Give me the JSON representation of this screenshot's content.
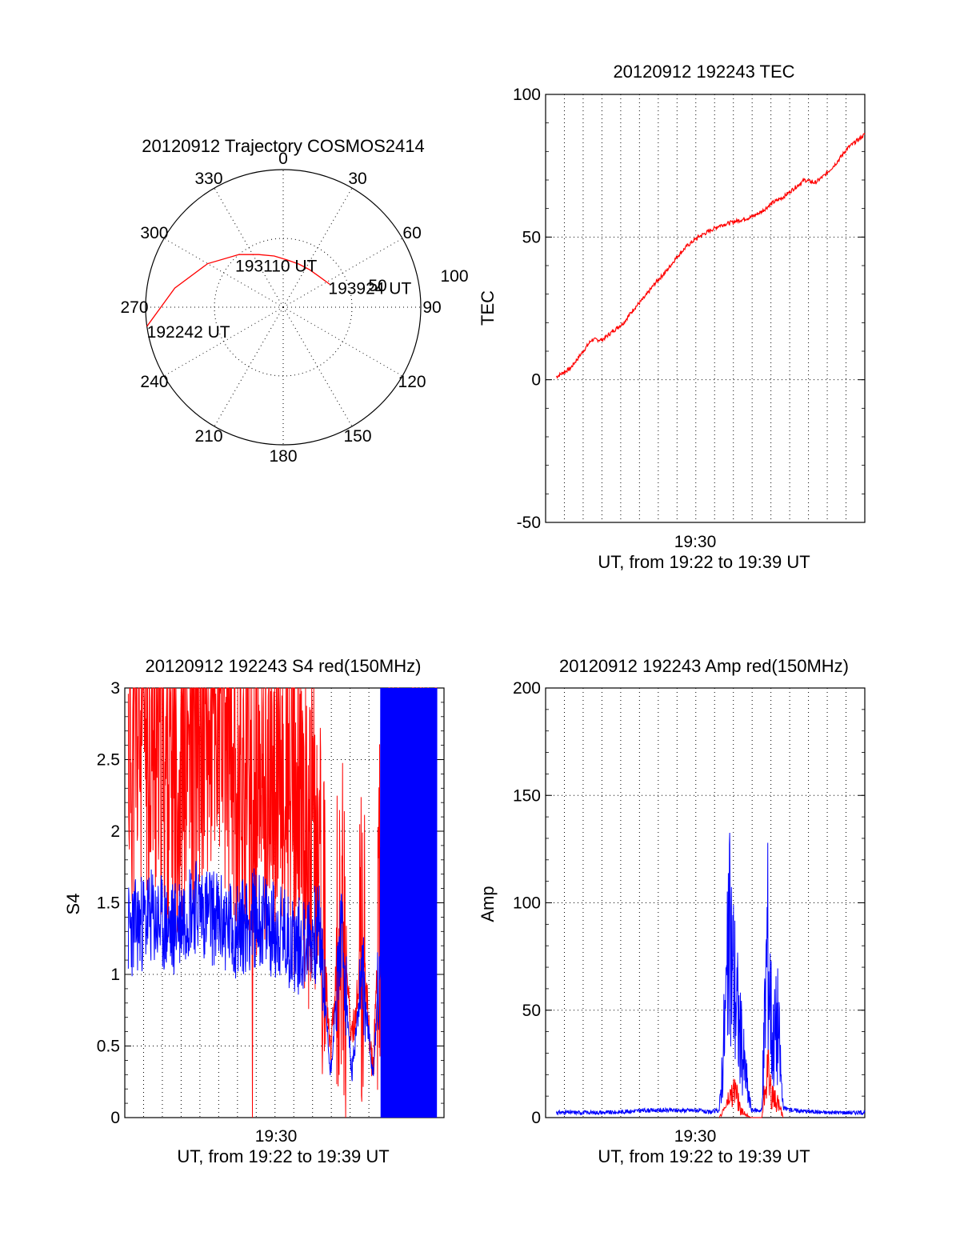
{
  "chart_data": [
    {
      "type": "polar",
      "title": "20120912 Trajectory COSMOS2414",
      "angle_labels": [
        "0",
        "30",
        "60",
        "90",
        "120",
        "150",
        "180",
        "210",
        "240",
        "270",
        "300",
        "330"
      ],
      "radial_labels": [
        "50",
        "100"
      ],
      "track": {
        "color": "#ff0000",
        "points": [
          [
            262,
            90
          ],
          [
            280,
            72
          ],
          [
            300,
            57
          ],
          [
            320,
            45
          ],
          [
            335,
            38
          ],
          [
            350,
            34
          ],
          [
            5,
            31
          ],
          [
            20,
            30
          ],
          [
            35,
            30
          ],
          [
            50,
            31
          ],
          [
            64,
            34
          ]
        ]
      },
      "annotations": [
        {
          "text": "192242 UT",
          "az": 262,
          "el": 90
        },
        {
          "text": "193110 UT",
          "az": 350,
          "el": 30
        },
        {
          "text": "193924 UT",
          "az": 64,
          "el": 34
        }
      ]
    },
    {
      "type": "line",
      "title": "20120912 192243 TEC",
      "xlabel": "UT, from 19:22 to 19:39 UT",
      "ylabel": "TEC",
      "xlim": [
        19.3667,
        19.6667
      ],
      "ylim": [
        -50,
        100
      ],
      "yticks": [
        "100",
        "50",
        "0",
        "-50"
      ],
      "xtick_label": "19:30",
      "series": [
        {
          "color": "#ff0000",
          "x": [
            19.3767,
            19.39,
            19.4,
            19.41,
            19.42,
            19.43,
            19.44,
            19.45,
            19.46,
            19.47,
            19.48,
            19.49,
            19.5,
            19.51,
            19.52,
            19.53,
            19.54,
            19.55,
            19.56,
            19.57,
            19.58,
            19.59,
            19.6,
            19.61,
            19.62,
            19.63,
            19.64,
            19.65,
            19.6667
          ],
          "y": [
            1,
            4,
            9,
            14,
            14,
            17,
            20,
            25,
            29,
            34,
            38,
            43,
            47,
            50,
            52,
            54,
            55,
            56,
            57,
            59,
            62,
            64,
            67,
            70,
            69,
            72,
            76,
            81,
            86
          ]
        }
      ]
    },
    {
      "type": "line",
      "title": "20120912 192243 S4 red(150MHz)",
      "xlabel": "UT, from 19:22 to 19:39 UT",
      "ylabel": "S4",
      "xlim": [
        19.3667,
        19.6667
      ],
      "ylim": [
        0,
        3
      ],
      "yticks": [
        "3",
        "2.5",
        "2",
        "1.5",
        "1",
        "0.5",
        "0"
      ],
      "xtick_label": "19:30",
      "series": [
        {
          "color": "#ff0000",
          "x": [
            19.37,
            19.39,
            19.41,
            19.43,
            19.45,
            19.47,
            19.49,
            19.51,
            19.53,
            19.55,
            19.56,
            19.57,
            19.58,
            19.59,
            19.6,
            19.61,
            19.62,
            19.63,
            19.64,
            19.65,
            19.66
          ],
          "y": [
            2.6,
            2.7,
            2.4,
            2.6,
            2.8,
            2.5,
            2.2,
            2.4,
            2.1,
            1.8,
            0.4,
            1.5,
            0.5,
            1.2,
            0.3,
            2.2,
            2.6,
            2.0,
            2.4,
            2.2,
            2.5
          ]
        },
        {
          "color": "#0000ff",
          "x": [
            19.37,
            19.39,
            19.41,
            19.43,
            19.45,
            19.47,
            19.49,
            19.51,
            19.53,
            19.55,
            19.56,
            19.57,
            19.58,
            19.59,
            19.6,
            19.61,
            19.62,
            19.63,
            19.64,
            19.65,
            19.66
          ],
          "y": [
            1.3,
            1.4,
            1.3,
            1.5,
            1.4,
            1.3,
            1.4,
            1.3,
            1.2,
            1.3,
            0.3,
            1.3,
            0.3,
            1.0,
            0.3,
            1.5,
            1.6,
            1.5,
            1.5,
            1.6,
            1.5
          ]
        }
      ]
    },
    {
      "type": "line",
      "title": "20120912 192243 Amp red(150MHz)",
      "xlabel": "UT, from 19:22 to 19:39 UT",
      "ylabel": "Amp",
      "xlim": [
        19.3667,
        19.6667
      ],
      "ylim": [
        0,
        200
      ],
      "yticks": [
        "200",
        "150",
        "100",
        "50",
        "0"
      ],
      "xtick_label": "19:30",
      "series": [
        {
          "color": "#0000ff",
          "x": [
            19.3767,
            19.4,
            19.43,
            19.46,
            19.49,
            19.51,
            19.52,
            19.53,
            19.54,
            19.545,
            19.55,
            19.56,
            19.57,
            19.575,
            19.58,
            19.585,
            19.59,
            19.6,
            19.63,
            19.6667
          ],
          "y": [
            2,
            2,
            2,
            3,
            3,
            3,
            2,
            3,
            140,
            100,
            60,
            3,
            3,
            145,
            60,
            75,
            4,
            3,
            2,
            2
          ]
        },
        {
          "color": "#ff0000",
          "x": [
            19.53,
            19.54,
            19.545,
            19.55,
            19.56,
            19.57,
            19.575,
            19.58,
            19.585,
            19.59
          ],
          "y": [
            0,
            15,
            22,
            5,
            0,
            0,
            40,
            15,
            12,
            0
          ]
        }
      ]
    }
  ]
}
